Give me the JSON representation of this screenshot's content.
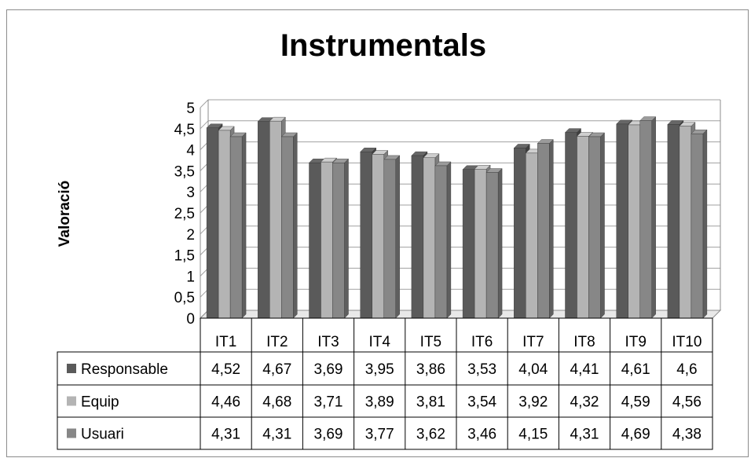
{
  "chart_data": {
    "type": "bar",
    "title": "Instrumentals",
    "ylabel": "Valoració",
    "xlabel": "",
    "ylim": [
      0,
      5
    ],
    "yticks": [
      "0",
      "0,5",
      "1",
      "1,5",
      "2",
      "2,5",
      "3",
      "3,5",
      "4",
      "4,5",
      "5"
    ],
    "categories": [
      "IT1",
      "IT2",
      "IT3",
      "IT4",
      "IT5",
      "IT6",
      "IT7",
      "IT8",
      "IT9",
      "IT10"
    ],
    "series": [
      {
        "name": "Responsable",
        "color": "#5a5a5a",
        "values": [
          4.52,
          4.67,
          3.69,
          3.95,
          3.86,
          3.53,
          4.04,
          4.41,
          4.61,
          4.6
        ],
        "labels": [
          "4,52",
          "4,67",
          "3,69",
          "3,95",
          "3,86",
          "3,53",
          "4,04",
          "4,41",
          "4,61",
          "4,6"
        ]
      },
      {
        "name": "Equip",
        "color": "#b4b4b4",
        "values": [
          4.46,
          4.68,
          3.71,
          3.89,
          3.81,
          3.54,
          3.92,
          4.32,
          4.59,
          4.56
        ],
        "labels": [
          "4,46",
          "4,68",
          "3,71",
          "3,89",
          "3,81",
          "3,54",
          "3,92",
          "4,32",
          "4,59",
          "4,56"
        ]
      },
      {
        "name": "Usuari",
        "color": "#878787",
        "values": [
          4.31,
          4.31,
          3.69,
          3.77,
          3.62,
          3.46,
          4.15,
          4.31,
          4.69,
          4.38
        ],
        "labels": [
          "4,31",
          "4,31",
          "3,69",
          "3,77",
          "3,62",
          "3,46",
          "4,15",
          "4,31",
          "4,69",
          "4,38"
        ]
      }
    ],
    "grid": true,
    "data_table": true
  }
}
